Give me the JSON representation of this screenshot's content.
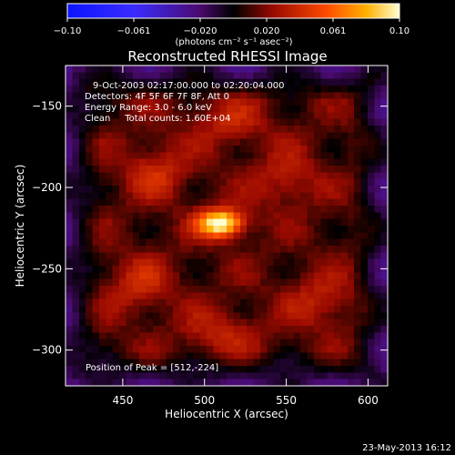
{
  "chart_data": {
    "type": "heatmap",
    "title": "Reconstructed RHESSI Image",
    "xlabel": "Heliocentric X (arcsec)",
    "ylabel": "Heliocentric Y (arcsec)",
    "xlim": [
      415,
      612
    ],
    "ylim": [
      -322,
      -125
    ],
    "x_ticks": [
      450,
      500,
      550,
      600
    ],
    "y_ticks": [
      -150,
      -200,
      -250,
      -300
    ],
    "annotation_lines": [
      "9-Oct-2003 02:17:00.000 to 02:20:04.000",
      "Detectors: 4F 5F 6F 7F 8F, Att 0",
      "Energy Range: 3.0 - 6.0 keV",
      "Clean     Total counts: 1.60E+04"
    ],
    "peak_label": "Position of Peak = [512,-224]",
    "peak": {
      "x": 512,
      "y": -224
    },
    "colorbar": {
      "ticks": [
        "-0.10",
        "-0.061",
        "-0.020",
        "0.020",
        "0.061",
        "0.10"
      ],
      "range": [
        -0.1,
        0.1
      ],
      "units_label": "(photons cm⁻² s⁻¹ asec⁻²)"
    },
    "sources": [
      {
        "x": 510,
        "y": -222,
        "amp": 0.095,
        "sx": 10,
        "sy": 6
      },
      {
        "x": 470,
        "y": -190,
        "amp": 0.025,
        "sx": 14,
        "sy": 12
      },
      {
        "x": 550,
        "y": -195,
        "amp": 0.022,
        "sx": 14,
        "sy": 12
      },
      {
        "x": 460,
        "y": -260,
        "amp": 0.024,
        "sx": 14,
        "sy": 12
      },
      {
        "x": 570,
        "y": -270,
        "amp": 0.022,
        "sx": 14,
        "sy": 12
      },
      {
        "x": 515,
        "y": -160,
        "amp": 0.022,
        "sx": 16,
        "sy": 10
      },
      {
        "x": 510,
        "y": -290,
        "amp": 0.022,
        "sx": 16,
        "sy": 10
      }
    ],
    "footer_date": "23-May-2013 16:12"
  }
}
